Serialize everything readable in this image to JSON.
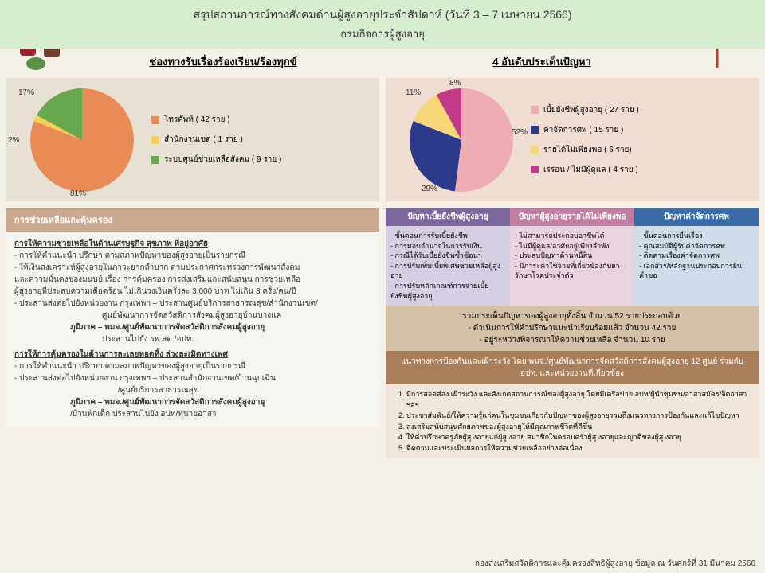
{
  "header": {
    "title": "สรุปสถานการณ์ทางสังคมด้านผู้สูงอายุประจำสัปดาห์ (วันที่ 3 – 7 เมษายน 2566)",
    "subtitle": "กรมกิจการผู้สูงอายุ"
  },
  "section_titles": {
    "left": "ช่องทางรับเรื่องร้องเรียน/ร้องทุกข์",
    "right": "4 อันดับประเด็นปัญหา"
  },
  "pie_left": {
    "type": "pie",
    "background": "#e7e1d3",
    "slices": [
      {
        "label": "โทรศัพท์ ( 42 ราย )",
        "pct": 81,
        "color": "#e98b56"
      },
      {
        "label": "สำนักงานเขต ( 1 ราย )",
        "pct": 2,
        "color": "#f5cf5a"
      },
      {
        "label": "ระบบศูนย์ช่วยเหลือสังคม ( 9 ราย )",
        "pct": 17,
        "color": "#68a84f"
      }
    ],
    "pct_labels": [
      "81%",
      "2%",
      "17%"
    ]
  },
  "pie_right": {
    "type": "pie",
    "background": "#f0ddd2",
    "slices": [
      {
        "label": "เบี้ยยังชีพผู้สูงอายุ ( 27 ราย )",
        "pct": 52,
        "color": "#ecacb1"
      },
      {
        "label": "ค่าจัดการศพ ( 15 ราย )",
        "pct": 29,
        "color": "#2c3a8c"
      },
      {
        "label": "รายได้ไม่เพียงพอ ( 6 ราย)",
        "pct": 11,
        "color": "#f5d77a"
      },
      {
        "label": "เร่ร่อน / ไม่มีผู้ดูแล ( 4 ราย )",
        "pct": 8,
        "color": "#c03a87"
      }
    ],
    "pct_labels": [
      "52%",
      "29%",
      "11%",
      "8%"
    ]
  },
  "assist_header": "การช่วยเหลือและคุ้มครอง",
  "assist_body": {
    "p1_title": "การให้ความช่วยเหลือในด้านเศรษฐกิจ สุขภาพ ที่อยู่อาศัย",
    "p1_l1": "- การให้คำแนะนำ ปรึกษา ตามสภาพปัญหาของผู้สูงอายุเป็นรายกรณี",
    "p1_l2": "- ให้เงินสงเคราะห์ผู้สูงอายุในภาวะยากลำบาก ตามประกาศกระทรวงการพัฒนาสังคม",
    "p1_l3": "และความมั่นคงของมนุษย์ เรื่อง การคุ้มครอง การส่งเสริมและสนับสนุน การช่วยเหลือ",
    "p1_l4": "ผู้สูงอายุที่ประสบความเดือดร้อน ไม่เกินวงเงินครั้งละ 3,000 บาท ไม่เกิน 3 ครั้ง/คน/ปี",
    "p1_l5": "- ประสานส่งต่อไปยังหน่วยงาน กรุงเทพฯ – ประสานศูนย์บริการสาธารณสุข/สำนักงานเขต/",
    "p1_l6": "ศูนย์พัฒนาการจัดสวัสดิการสังคมผู้สูงอายุบ้านบางแค",
    "p1_l7": "ภูมิภาค – พมจ./ศูนย์พัฒนาการจัดสวัสดิการสังคมผู้สูงอายุ",
    "p1_l8": "ประสานไปยัง รพ.สต./อปท.",
    "p2_title": "การให้การคุ้มครองในด้านการละเลยทอดทิ้ง ล่วงละเมิดทางเพศ",
    "p2_l1": "- การให้คำแนะนำ ปรึกษา ตามสภาพปัญหาของผู้สูงอายุเป็นรายกรณี",
    "p2_l2": "- ประสานส่งต่อไปยังหน่วยงาน กรุงเทพฯ – ประสานสำนักงานเขต/บ้านฉุกเฉิน",
    "p2_l3": "/ศูนย์บริการสาธารณสุข",
    "p2_l4": "ภูมิภาค – พมจ./ศูนย์พัฒนาการจัดสวัสดิการสังคมผู้สูงอายุ",
    "p2_l5": "/บ้านพักเด็ก ประสานไปยัง อปท/ทนายอาสา"
  },
  "table": {
    "headers": [
      {
        "text": "ปัญหาเบี้ยยังชีพผู้สูงอายุ",
        "bg": "#7b679b",
        "body_bg": "#d6cfe3"
      },
      {
        "text": "ปัญหาผู้สูงอายุรายได้ไม่เพียงพอ",
        "bg": "#c07fa0",
        "body_bg": "#e9d3de"
      },
      {
        "text": "ปัญหาค่าจัดการศพ",
        "bg": "#3a6aa8",
        "body_bg": "#cfdce9"
      }
    ],
    "col1": [
      "ขั้นตอนการรับเบี้ยยังชีพ",
      "การมอบอำนาจในการรับเงิน",
      "กรณีได้รับเบี้ยยังชีพซ้ำซ้อนฯ",
      "การปรับเพิ่มเบี้ยพิเศษช่วยเหลือผู้สูงอายุ",
      "การปรับหลักเกณฑ์การจ่ายเบี้ยยังชีพผู้สูงอายุ"
    ],
    "col2": [
      "ไม่สามารถประกอบอาชีพได้",
      "ไม่มีผู้ดูแล/อาศัยอยู่เพียงลำพัง",
      "ประสบปัญหาด้านหนี้สิน",
      "มีภาระค่าใช้จ่ายที่เกี่ยวข้องกับยารักษาโรคประจำตัว"
    ],
    "col3": [
      "ขั้นตอนการยื่นเรื่อง",
      "คุณสมบัติผู้รับค่าจัดการศพ",
      "ติดตามเรื่องค่าจัดการศพ",
      "เอกสาร/หลักฐานประกอบการยื่นคำขอ"
    ]
  },
  "summary": {
    "l1": "รวมประเด็นปัญหาของผู้สูงอายุทั้งสิ้น จำนวน  52 รายประกอบด้วย",
    "l2": "- ดำเนินการให้คำปรึกษาแนะนำเรียบร้อยแล้ว   จำนวน 42 ราย",
    "l3": "- อยู่ระหว่างพิจารณาให้ความช่วยเหลือ          จำนวน  10 ราย"
  },
  "prevention": {
    "header": "แนวทางการป้องกันและเฝ้าระวัง  โดย พมจ./ศูนย์พัฒนาการจัดสวัสดิการสังคมผู้สูงอายุ  12 ศูนย์ ร่วมกับ อปท. และหน่วยงานที่เกี่ยวข้อง",
    "items": [
      "มีการสอดส่อง เฝ้าระวัง และสังเกตสถานการณ์ของผู้สูงอายุ โดยมีเครือข่าย อปท/ผู้นำชุมชน/อาสาสมัคร/จิตอาสา ฯลฯ",
      "ประชาสัมพันธ์/ให้ความรู้แก่คนในชุมชนเกี่ยวกับปัญหาของผู้สูงอายุรวมถึงแนวทางการป้องกันและแก้ไขปัญหา",
      "ส่งเสริมสนับสนุนศักยภาพของผู้สูงอายุให้มีคุณภาพชีวิตที่ดีขึ้น",
      "ให้คำปรึกษาครูภัยผู้สู งอายุแก่ผู้สู งอายุ   สมาชิกในครอบครัวผู้สู งอายุและญาติของผู้สู งอายุ",
      "ติดตามและประเมินผลการให้ความช่วยเหลืออย่างต่อเนื่อง"
    ]
  },
  "footer": "กองส่งเสริมสวัสดิการและคุ้มครองสิทธิผู้สูงอายุ   ข้อมูล ณ วันศุกร์ที่ 31 มีนาคม 2566"
}
